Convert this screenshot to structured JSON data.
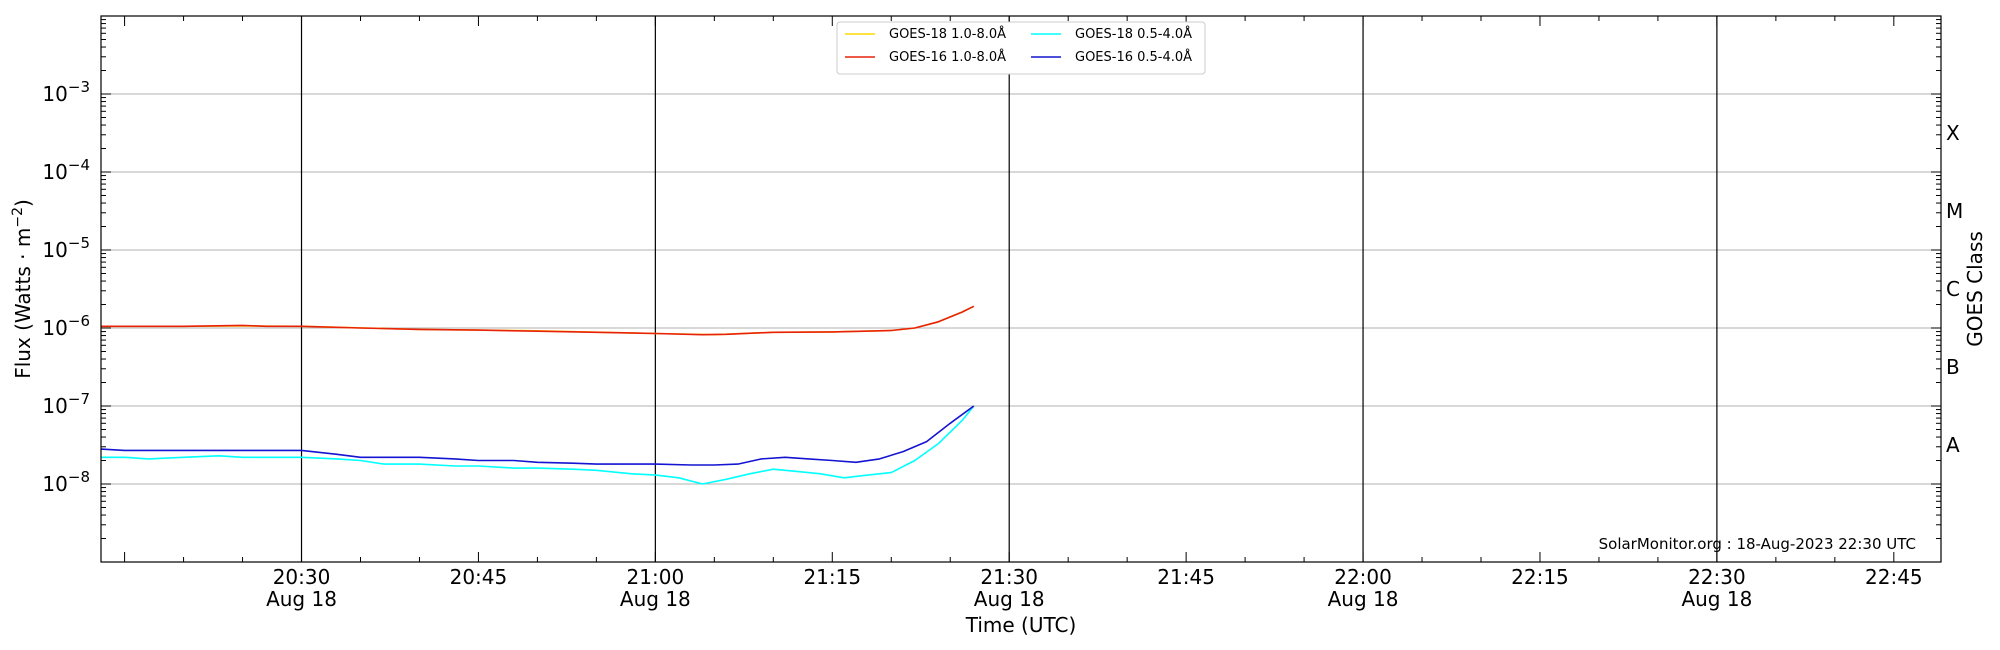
{
  "chart_data": {
    "type": "line",
    "title": "",
    "xlabel": "Time (UTC)",
    "ylabel_main": "Flux (Watts · m",
    "ylabel_sup": "−2",
    "ylabel_close": ")",
    "y2label": "GOES Class",
    "yscale": "log",
    "ylim": [
      1e-09,
      0.01
    ],
    "xlim": [
      "20:13",
      "22:49"
    ],
    "x_ticks": [
      {
        "time": "20:30",
        "label": "20:30",
        "date": "Aug 18"
      },
      {
        "time": "20:45",
        "label": "20:45",
        "date": ""
      },
      {
        "time": "21:00",
        "label": "21:00",
        "date": "Aug 18"
      },
      {
        "time": "21:15",
        "label": "21:15",
        "date": ""
      },
      {
        "time": "21:30",
        "label": "21:30",
        "date": "Aug 18"
      },
      {
        "time": "21:45",
        "label": "21:45",
        "date": ""
      },
      {
        "time": "22:00",
        "label": "22:00",
        "date": "Aug 18"
      },
      {
        "time": "22:15",
        "label": "22:15",
        "date": ""
      },
      {
        "time": "22:30",
        "label": "22:30",
        "date": "Aug 18"
      },
      {
        "time": "22:45",
        "label": "22:45",
        "date": ""
      }
    ],
    "vertical_lines": [
      "20:30",
      "21:00",
      "21:30",
      "22:00",
      "22:30"
    ],
    "y_ticks": [
      {
        "value": 1e-08,
        "base": "10",
        "exp": "−8"
      },
      {
        "value": 1e-07,
        "base": "10",
        "exp": "−7"
      },
      {
        "value": 1e-06,
        "base": "10",
        "exp": "−6"
      },
      {
        "value": 1e-05,
        "base": "10",
        "exp": "−5"
      },
      {
        "value": 0.0001,
        "base": "10",
        "exp": "−4"
      },
      {
        "value": 0.001,
        "base": "10",
        "exp": "−3"
      }
    ],
    "goes_classes": [
      {
        "label": "A",
        "value": 3.16e-08
      },
      {
        "label": "B",
        "value": 3.16e-07
      },
      {
        "label": "C",
        "value": 3.16e-06
      },
      {
        "label": "M",
        "value": 3.16e-05
      },
      {
        "label": "X",
        "value": 0.000316
      }
    ],
    "grid": "horizontal at decades",
    "legend_position": "top-center",
    "legend": [
      {
        "name": "GOES-18 1.0-8.0Å",
        "color": "#ffd700"
      },
      {
        "name": "GOES-16 1.0-8.0Å",
        "color": "#e8210c"
      },
      {
        "name": "GOES-18 0.5-4.0Å",
        "color": "#00ffff"
      },
      {
        "name": "GOES-16 0.5-4.0Å",
        "color": "#1414d2"
      }
    ],
    "series": [
      {
        "name": "GOES-18 1.0-8.0Å",
        "color": "#ffd700",
        "x": [
          "20:13",
          "20:20",
          "20:25",
          "20:30",
          "20:40",
          "20:50",
          "21:00",
          "21:05",
          "21:10",
          "21:15",
          "21:20",
          "21:22",
          "21:24",
          "21:26",
          "21:27"
        ],
        "values": [
          1.05e-06,
          1.05e-06,
          1.06e-06,
          1.05e-06,
          9.6e-07,
          9.2e-07,
          8.5e-07,
          8.2e-07,
          8.8e-07,
          8.9e-07,
          9.3e-07,
          1e-06,
          1.2e-06,
          1.6e-06,
          1.9e-06
        ]
      },
      {
        "name": "GOES-16 1.0-8.0Å",
        "color": "#e8210c",
        "x": [
          "20:13",
          "20:15",
          "20:20",
          "20:25",
          "20:27",
          "20:30",
          "20:35",
          "20:40",
          "20:45",
          "20:50",
          "20:55",
          "21:00",
          "21:04",
          "21:06",
          "21:10",
          "21:15",
          "21:20",
          "21:22",
          "21:24",
          "21:26",
          "21:27"
        ],
        "values": [
          1.05e-06,
          1.05e-06,
          1.05e-06,
          1.08e-06,
          1.05e-06,
          1.05e-06,
          1e-06,
          9.6e-07,
          9.4e-07,
          9.1e-07,
          8.8e-07,
          8.5e-07,
          8.2e-07,
          8.3e-07,
          8.8e-07,
          8.9e-07,
          9.3e-07,
          1e-06,
          1.2e-06,
          1.6e-06,
          1.9e-06
        ]
      },
      {
        "name": "GOES-18 0.5-4.0Å",
        "color": "#00ffff",
        "x": [
          "20:13",
          "20:15",
          "20:17",
          "20:20",
          "20:23",
          "20:25",
          "20:27",
          "20:30",
          "20:33",
          "20:35",
          "20:37",
          "20:40",
          "20:43",
          "20:45",
          "20:48",
          "20:50",
          "20:53",
          "20:55",
          "20:58",
          "21:00",
          "21:02",
          "21:04",
          "21:06",
          "21:08",
          "21:10",
          "21:12",
          "21:14",
          "21:16",
          "21:18",
          "21:20",
          "21:22",
          "21:24",
          "21:26",
          "21:27"
        ],
        "values": [
          2.2e-08,
          2.2e-08,
          2.1e-08,
          2.2e-08,
          2.3e-08,
          2.2e-08,
          2.2e-08,
          2.2e-08,
          2.1e-08,
          2e-08,
          1.8e-08,
          1.8e-08,
          1.7e-08,
          1.7e-08,
          1.6e-08,
          1.6e-08,
          1.55e-08,
          1.5e-08,
          1.35e-08,
          1.3e-08,
          1.2e-08,
          1e-08,
          1.15e-08,
          1.35e-08,
          1.55e-08,
          1.45e-08,
          1.35e-08,
          1.2e-08,
          1.3e-08,
          1.4e-08,
          2e-08,
          3.3e-08,
          6.5e-08,
          1e-07
        ]
      },
      {
        "name": "GOES-16 0.5-4.0Å",
        "color": "#1414d2",
        "x": [
          "20:13",
          "20:15",
          "20:18",
          "20:20",
          "20:23",
          "20:25",
          "20:28",
          "20:30",
          "20:33",
          "20:35",
          "20:38",
          "20:40",
          "20:43",
          "20:45",
          "20:48",
          "20:50",
          "20:53",
          "20:55",
          "20:58",
          "21:00",
          "21:03",
          "21:05",
          "21:07",
          "21:09",
          "21:11",
          "21:13",
          "21:15",
          "21:17",
          "21:19",
          "21:21",
          "21:23",
          "21:25",
          "21:27"
        ],
        "values": [
          2.8e-08,
          2.7e-08,
          2.7e-08,
          2.7e-08,
          2.7e-08,
          2.7e-08,
          2.7e-08,
          2.7e-08,
          2.4e-08,
          2.2e-08,
          2.2e-08,
          2.2e-08,
          2.1e-08,
          2e-08,
          2e-08,
          1.9e-08,
          1.85e-08,
          1.8e-08,
          1.8e-08,
          1.8e-08,
          1.75e-08,
          1.75e-08,
          1.8e-08,
          2.1e-08,
          2.2e-08,
          2.1e-08,
          2e-08,
          1.9e-08,
          2.1e-08,
          2.6e-08,
          3.5e-08,
          6e-08,
          1e-07
        ]
      }
    ],
    "footer": "SolarMonitor.org : 18-Aug-2023 22:30 UTC"
  }
}
